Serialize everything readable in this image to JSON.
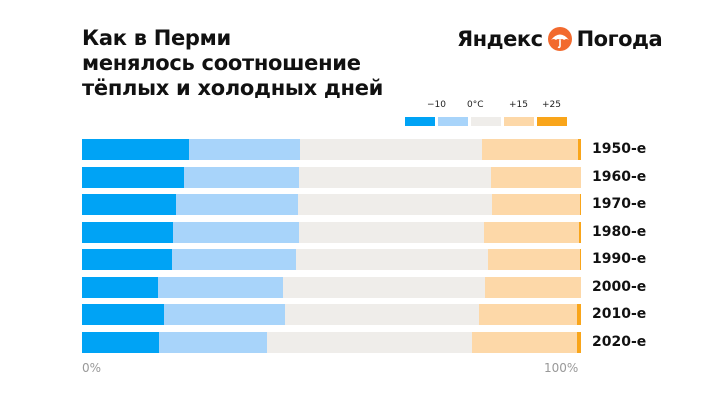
{
  "header": {
    "title_lines": [
      "Как в Перми",
      "менялось соотношение",
      "тёплых и холодных дней"
    ],
    "logo_left": "Яндекс",
    "logo_right": "Погода",
    "logo_icon": "umbrella-icon"
  },
  "colors": {
    "very_cold": "#00a3f5",
    "cold": "#a8d4fa",
    "mild": "#efedea",
    "warm": "#fdd8a8",
    "hot": "#f9a51a"
  },
  "chart_data": {
    "type": "bar",
    "orientation": "horizontal",
    "stacked": "percent",
    "categories": [
      "1950-е",
      "1960-е",
      "1970-е",
      "1980-е",
      "1990-е",
      "2000-е",
      "2010-е",
      "2020-е"
    ],
    "legend_labels": [
      "−10",
      "0°C",
      "+15",
      "+25"
    ],
    "series": [
      {
        "values": [
          21.4,
          20.4,
          18.8,
          18.2,
          18.0,
          15.2,
          16.4,
          15.4
        ]
      },
      {
        "values": [
          22.2,
          23.0,
          24.4,
          25.3,
          24.8,
          25.1,
          24.2,
          21.6
        ]
      },
      {
        "values": [
          36.5,
          38.5,
          38.9,
          37.1,
          38.5,
          40.5,
          38.9,
          41.1
        ]
      },
      {
        "values": [
          19.3,
          18.1,
          17.8,
          19.0,
          18.5,
          19.2,
          19.7,
          21.1
        ]
      },
      {
        "values": [
          0.6,
          0.0,
          0.1,
          0.4,
          0.2,
          0.0,
          0.8,
          0.8
        ]
      }
    ],
    "xlim": [
      0,
      100
    ],
    "x_tick_labels": [
      "0%",
      "100%"
    ],
    "legend_placement": "top-right",
    "grid": false
  }
}
